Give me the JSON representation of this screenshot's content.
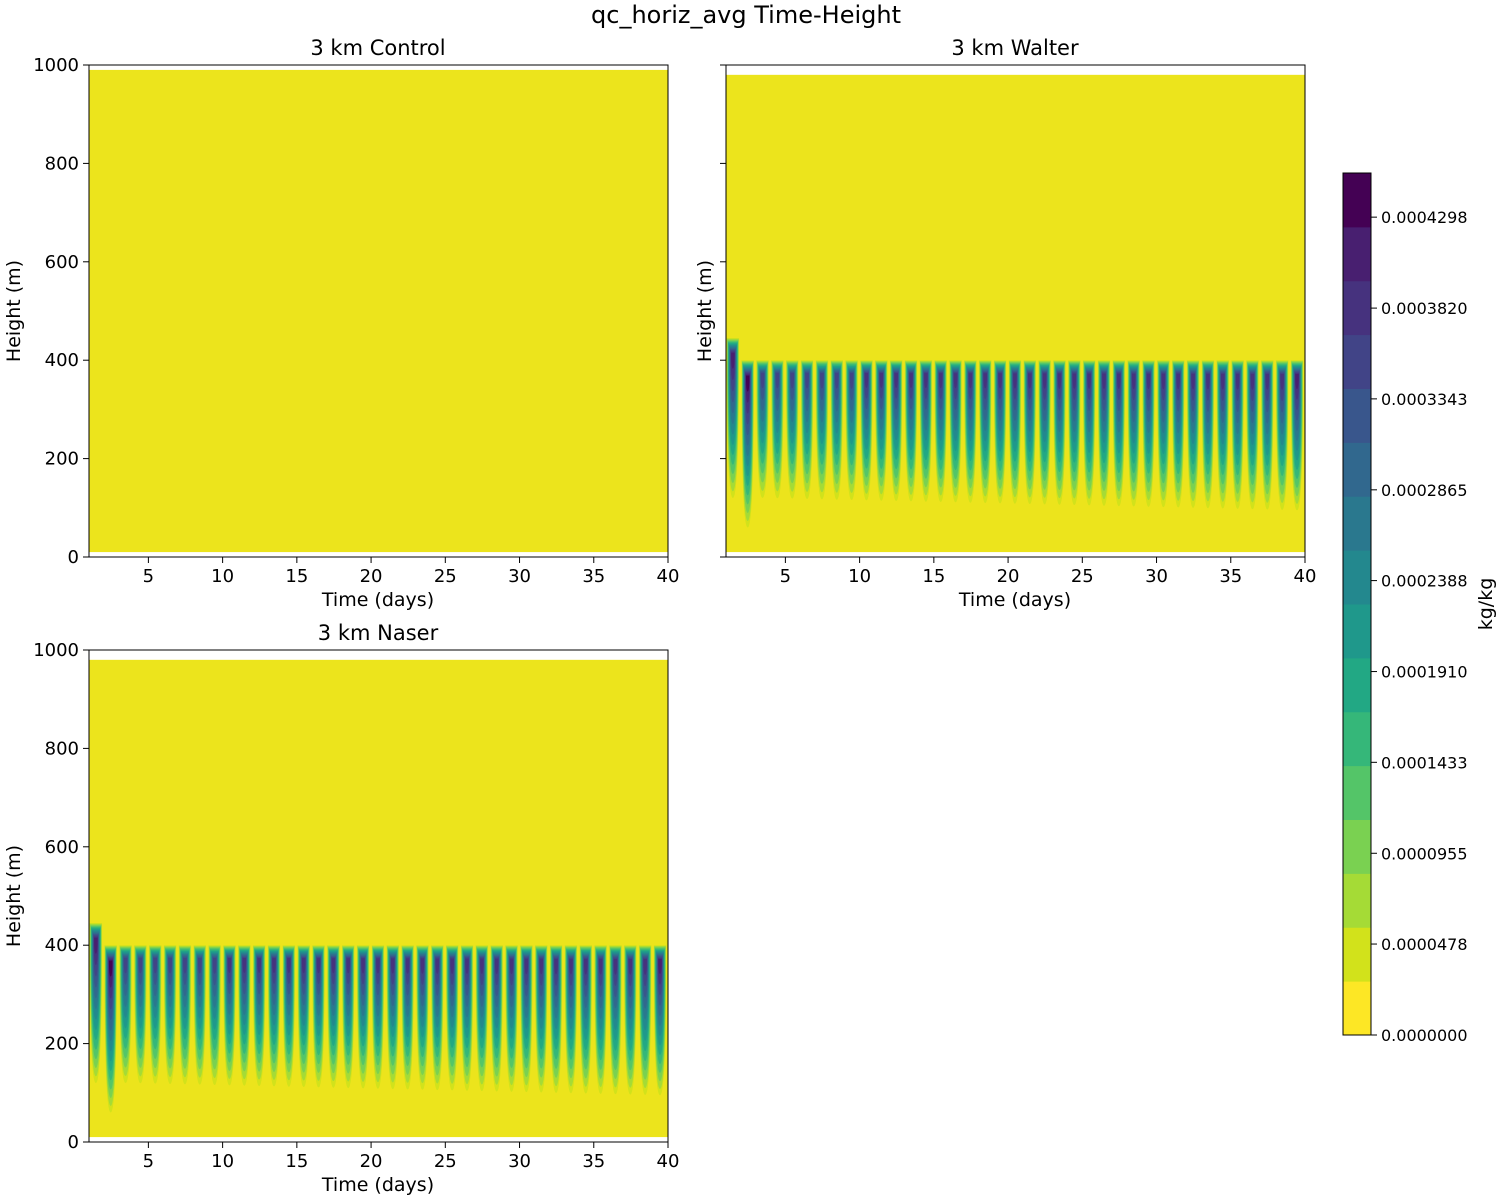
{
  "figure": {
    "title": "qc_horiz_avg Time-Height"
  },
  "colors": {
    "background_yellow": "#ece41c",
    "viridis_levels": [
      "#fde725",
      "#d2e21b",
      "#a5db36",
      "#7ad151",
      "#54c568",
      "#35b779",
      "#22a884",
      "#1f988b",
      "#23888e",
      "#2a788e",
      "#31688e",
      "#39568c",
      "#414487",
      "#46327e",
      "#481f70",
      "#440154"
    ]
  },
  "chart_data": [
    {
      "type": "heatmap",
      "id": "control",
      "title": "3 km Control",
      "xlabel": "Time (days)",
      "ylabel": "Height (m)",
      "xlim": [
        1,
        40
      ],
      "ylim": [
        0,
        1000
      ],
      "data_top_m": 990,
      "data_bottom_m": 10,
      "xticks": [
        5,
        10,
        15,
        20,
        25,
        30,
        35,
        40
      ],
      "yticks": [
        0,
        200,
        400,
        600,
        800,
        1000
      ],
      "cloud": null
    },
    {
      "type": "heatmap",
      "id": "walter",
      "title": "3 km Walter",
      "xlabel": "Time (days)",
      "ylabel": "Height (m)",
      "xlim": [
        1,
        40
      ],
      "ylim": [
        0,
        1000
      ],
      "data_top_m": 980,
      "data_bottom_m": 10,
      "xticks": [
        5,
        10,
        15,
        20,
        25,
        30,
        35,
        40
      ],
      "yticks": [
        0,
        200,
        400,
        600,
        800,
        1000
      ],
      "show_ytick_labels": false,
      "cloud": {
        "period_days": 1,
        "first_day": 1,
        "last_day": 40,
        "spinup": [
          {
            "day": 1,
            "top_m": 490,
            "base_m": 175,
            "peak": 0.95
          },
          {
            "day": 2,
            "top_m": 445,
            "base_m": 120,
            "peak": 0.95
          },
          {
            "day": 3,
            "top_m": 400,
            "base_m": 60,
            "peak": 1.0
          }
        ],
        "steady_top_m": 400,
        "base_start_m": 120,
        "base_end_m": 95,
        "peak_start": 0.82,
        "peak_end": 0.9
      }
    },
    {
      "type": "heatmap",
      "id": "naser",
      "title": "3 km Naser",
      "xlabel": "Time (days)",
      "ylabel": "Height (m)",
      "xlim": [
        1,
        40
      ],
      "ylim": [
        0,
        1000
      ],
      "data_top_m": 980,
      "data_bottom_m": 10,
      "xticks": [
        5,
        10,
        15,
        20,
        25,
        30,
        35,
        40
      ],
      "yticks": [
        0,
        200,
        400,
        600,
        800,
        1000
      ],
      "cloud": {
        "period_days": 1,
        "first_day": 1,
        "last_day": 40,
        "spinup": [
          {
            "day": 1,
            "top_m": 490,
            "base_m": 175,
            "peak": 0.95
          },
          {
            "day": 2,
            "top_m": 445,
            "base_m": 120,
            "peak": 0.95
          },
          {
            "day": 3,
            "top_m": 400,
            "base_m": 60,
            "peak": 1.0
          }
        ],
        "steady_top_m": 400,
        "base_start_m": 120,
        "base_end_m": 95,
        "peak_start": 0.82,
        "peak_end": 0.9
      }
    }
  ],
  "colorbar": {
    "label": "kg/kg",
    "min": 0.0,
    "max": 0.000453,
    "levels": 16,
    "tick_labels": [
      "0.0000000",
      "0.0000478",
      "0.0000955",
      "0.0001433",
      "0.0001910",
      "0.0002388",
      "0.0002865",
      "0.0003343",
      "0.0003820",
      "0.0004298"
    ],
    "tick_values": [
      0.0,
      4.78e-05,
      9.55e-05,
      0.0001433,
      0.000191,
      0.0002388,
      0.0002865,
      0.0003343,
      0.000382,
      0.0004298
    ]
  }
}
